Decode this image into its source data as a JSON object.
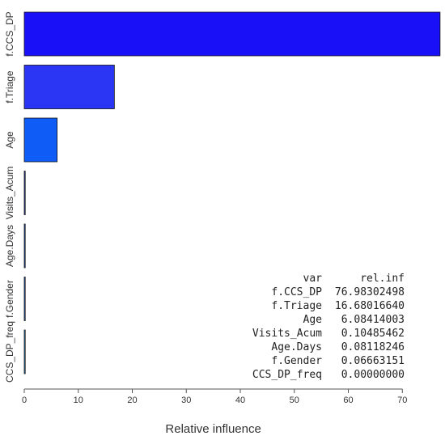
{
  "chart_data": {
    "type": "bar",
    "orientation": "horizontal",
    "categories": [
      "f.CCS_DP",
      "f.Triage",
      "Age",
      "Visits_Acum",
      "Age.Days",
      "f.Gender",
      "CCS_DP_freq"
    ],
    "category_labels": [
      "f.CCS_DP",
      "f.Triage",
      "Age",
      "Visits_Acum",
      "Age.Days",
      "f.Gender",
      "CCS_DP_freq"
    ],
    "values": [
      76.98302498,
      16.6801664,
      6.08414003,
      0.10485462,
      0.08118246,
      0.06663151,
      0.0
    ],
    "bar_colors": [
      "#1a10f8",
      "#2a36f4",
      "#0f5cf7",
      "#1f3fcf",
      "#1c4fd8",
      "#1f6bd9",
      "#1f8fd9"
    ],
    "xlabel": "Relative influence",
    "xlim": [
      0,
      77
    ],
    "xticks": [
      0,
      10,
      20,
      30,
      40,
      50,
      60,
      70
    ],
    "table": {
      "header": [
        "var",
        "rel.inf"
      ],
      "rows": [
        [
          "f.CCS_DP",
          "76.98302498"
        ],
        [
          "f.Triage",
          "16.68016640"
        ],
        [
          "Age",
          "6.08414003"
        ],
        [
          "Visits_Acum",
          "0.10485462"
        ],
        [
          "Age.Days",
          "0.08118246"
        ],
        [
          "f.Gender",
          "0.06663151"
        ],
        [
          "CCS_DP_freq",
          "0.00000000"
        ]
      ]
    }
  }
}
